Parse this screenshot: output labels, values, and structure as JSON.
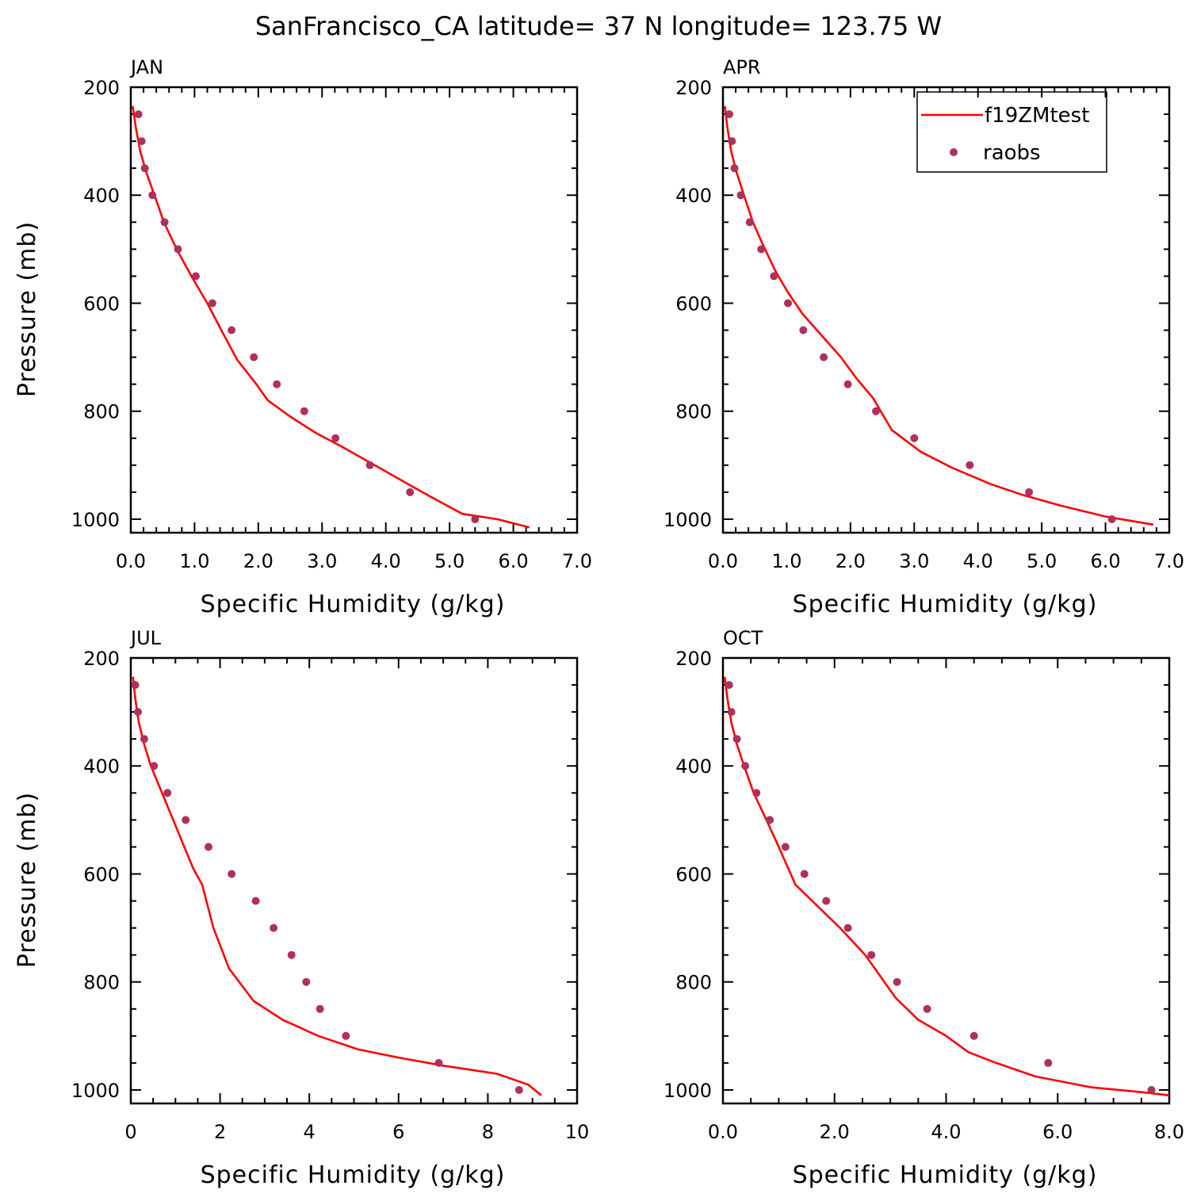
{
  "title": "SanFrancisco_CA  latitude= 37 N longitude= 123.75 W",
  "colors": {
    "model": "#ff0000",
    "obs": "#b0305a"
  },
  "legend": {
    "model": "f19ZMtest",
    "obs": "raobs",
    "position": "top-right of APR panel"
  },
  "chart_data": [
    {
      "type": "line",
      "panel": "JAN",
      "xlabel": "Specific Humidity (g/kg)",
      "ylabel": "Pressure (mb)",
      "xlim": [
        0,
        7
      ],
      "ylim": [
        1025,
        200
      ],
      "xticks": [
        "0.0",
        "1.0",
        "2.0",
        "3.0",
        "4.0",
        "5.0",
        "6.0",
        "7.0"
      ],
      "yticks": [
        "200",
        "400",
        "600",
        "800",
        "1000"
      ],
      "series": [
        {
          "name": "f19ZMtest",
          "style": "line",
          "x": [
            0.03,
            0.08,
            0.15,
            0.25,
            0.37,
            0.52,
            0.72,
            0.95,
            1.2,
            1.42,
            1.67,
            1.97,
            2.15,
            2.5,
            2.9,
            3.3,
            3.75,
            4.2,
            4.65,
            5.2,
            5.75,
            6.25
          ],
          "y": [
            235,
            275,
            320,
            360,
            400,
            450,
            500,
            550,
            600,
            650,
            705,
            750,
            780,
            810,
            840,
            865,
            895,
            925,
            955,
            990,
            1000,
            1015
          ]
        },
        {
          "name": "raobs",
          "style": "markers",
          "x": [
            0.12,
            0.17,
            0.22,
            0.34,
            0.53,
            0.74,
            1.02,
            1.28,
            1.58,
            1.93,
            2.29,
            2.72,
            3.21,
            3.75,
            4.38,
            5.4
          ],
          "y": [
            250,
            300,
            350,
            400,
            450,
            500,
            550,
            600,
            650,
            700,
            750,
            800,
            850,
            900,
            950,
            1000
          ]
        }
      ]
    },
    {
      "type": "line",
      "panel": "APR",
      "xlabel": "Specific Humidity (g/kg)",
      "ylabel": "",
      "xlim": [
        0,
        7
      ],
      "ylim": [
        1025,
        200
      ],
      "xticks": [
        "0.0",
        "1.0",
        "2.0",
        "3.0",
        "4.0",
        "5.0",
        "6.0",
        "7.0"
      ],
      "yticks": [
        "200",
        "400",
        "600",
        "800",
        "1000"
      ],
      "series": [
        {
          "name": "f19ZMtest",
          "style": "line",
          "x": [
            0.03,
            0.07,
            0.13,
            0.22,
            0.33,
            0.47,
            0.62,
            0.82,
            1.02,
            1.25,
            1.55,
            1.85,
            2.1,
            2.35,
            2.65,
            3.1,
            3.6,
            4.2,
            4.7,
            5.3,
            6.0,
            6.75
          ],
          "y": [
            235,
            275,
            320,
            360,
            400,
            450,
            490,
            540,
            580,
            620,
            660,
            700,
            740,
            775,
            835,
            875,
            905,
            935,
            955,
            975,
            995,
            1010
          ]
        },
        {
          "name": "raobs",
          "style": "markers",
          "x": [
            0.1,
            0.14,
            0.18,
            0.28,
            0.42,
            0.6,
            0.8,
            1.02,
            1.26,
            1.58,
            1.96,
            2.4,
            3.0,
            3.87,
            4.8,
            6.1
          ],
          "y": [
            250,
            300,
            350,
            400,
            450,
            500,
            550,
            600,
            650,
            700,
            750,
            800,
            850,
            900,
            950,
            1000
          ]
        }
      ]
    },
    {
      "type": "line",
      "panel": "JUL",
      "xlabel": "Specific Humidity (g/kg)",
      "ylabel": "Pressure (mb)",
      "xlim": [
        0,
        10
      ],
      "ylim": [
        1025,
        200
      ],
      "xticks": [
        "0",
        "2",
        "4",
        "6",
        "8",
        "10"
      ],
      "yticks": [
        "200",
        "400",
        "600",
        "800",
        "1000"
      ],
      "series": [
        {
          "name": "f19ZMtest",
          "style": "line",
          "x": [
            0.05,
            0.1,
            0.18,
            0.3,
            0.45,
            0.65,
            0.9,
            1.15,
            1.4,
            1.6,
            1.85,
            2.2,
            2.75,
            3.4,
            4.2,
            5.1,
            6.0,
            7.0,
            8.2,
            8.9,
            9.2
          ],
          "y": [
            235,
            275,
            320,
            360,
            400,
            440,
            490,
            540,
            590,
            620,
            700,
            775,
            835,
            870,
            900,
            925,
            940,
            955,
            970,
            990,
            1010
          ]
        },
        {
          "name": "raobs",
          "style": "markers",
          "x": [
            0.1,
            0.16,
            0.3,
            0.52,
            0.82,
            1.23,
            1.74,
            2.26,
            2.8,
            3.2,
            3.6,
            3.93,
            4.24,
            4.82,
            6.9,
            8.7
          ],
          "y": [
            250,
            300,
            350,
            400,
            450,
            500,
            550,
            600,
            650,
            700,
            750,
            800,
            850,
            900,
            950,
            1000
          ]
        }
      ]
    },
    {
      "type": "line",
      "panel": "OCT",
      "xlabel": "Specific Humidity (g/kg)",
      "ylabel": "",
      "xlim": [
        0,
        8
      ],
      "ylim": [
        1025,
        200
      ],
      "xticks": [
        "0.0",
        "2.0",
        "4.0",
        "6.0",
        "8.0"
      ],
      "yticks": [
        "200",
        "400",
        "600",
        "800",
        "1000"
      ],
      "series": [
        {
          "name": "f19ZMtest",
          "style": "line",
          "x": [
            0.03,
            0.08,
            0.15,
            0.25,
            0.38,
            0.55,
            0.78,
            1.0,
            1.3,
            1.7,
            2.1,
            2.55,
            3.1,
            3.5,
            4.0,
            4.4,
            4.9,
            5.6,
            6.6,
            7.6,
            8.0
          ],
          "y": [
            235,
            275,
            320,
            360,
            400,
            450,
            500,
            550,
            620,
            660,
            700,
            750,
            830,
            870,
            900,
            930,
            950,
            975,
            995,
            1005,
            1010
          ]
        },
        {
          "name": "raobs",
          "style": "markers",
          "x": [
            0.11,
            0.15,
            0.25,
            0.4,
            0.6,
            0.84,
            1.12,
            1.46,
            1.85,
            2.24,
            2.66,
            3.12,
            3.66,
            4.5,
            5.83,
            7.68
          ],
          "y": [
            250,
            300,
            350,
            400,
            450,
            500,
            550,
            600,
            650,
            700,
            750,
            800,
            850,
            900,
            950,
            1000
          ]
        }
      ]
    }
  ]
}
